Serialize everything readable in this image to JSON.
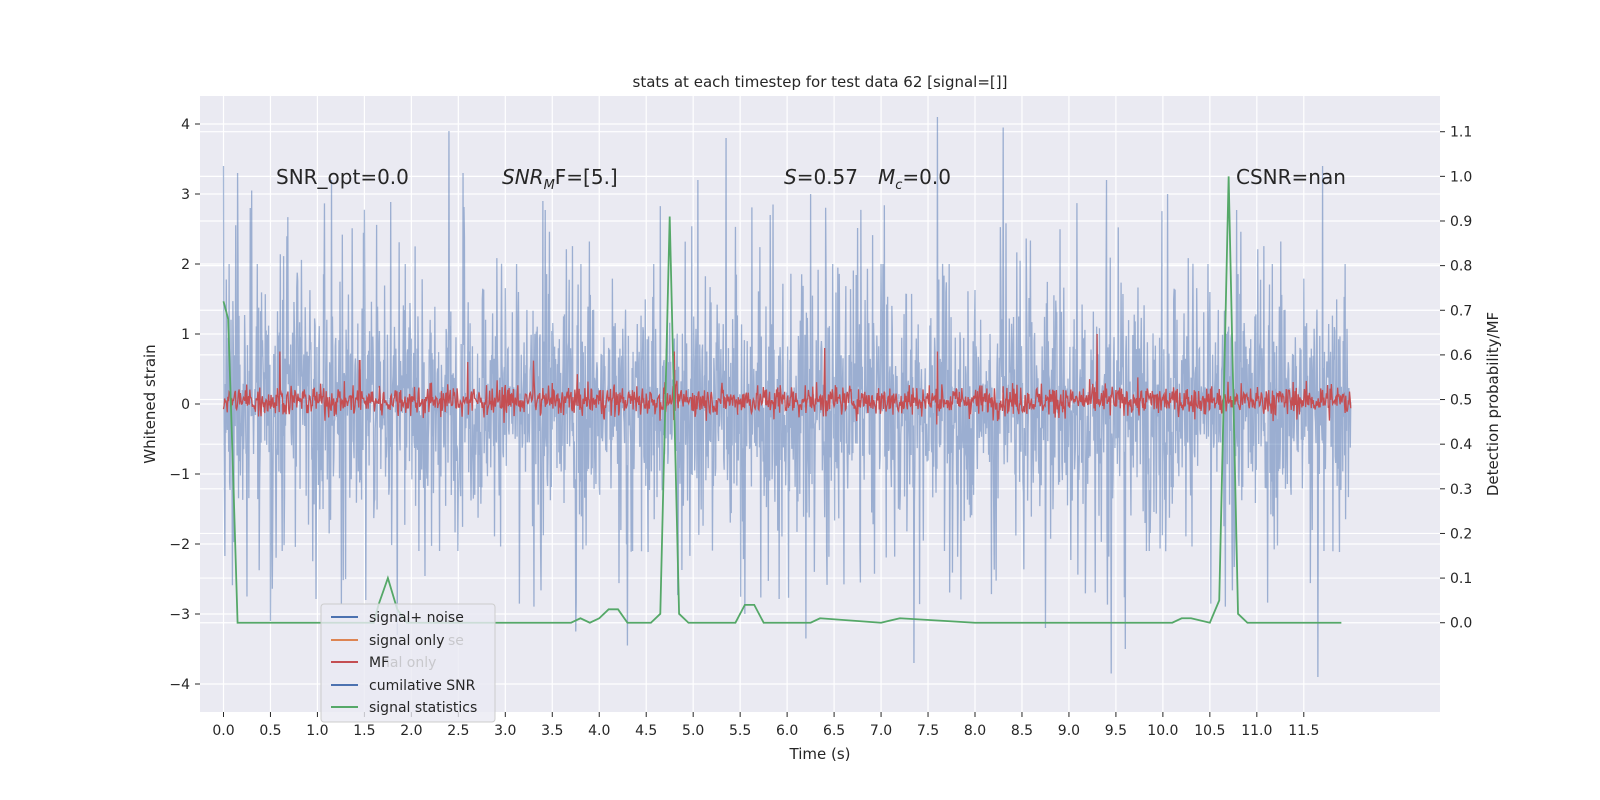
{
  "chart_data": {
    "type": "line",
    "title": "stats at each timestep for test data 62 [signal=[]]",
    "xlabel": "Time (s)",
    "ylabel": "Whitened strain",
    "ylabel_right": "Detection probability/MF",
    "xlim": [
      -0.25,
      12.95
    ],
    "ylim": [
      -4.4,
      4.4
    ],
    "ylim_right": [
      -0.2,
      1.18
    ],
    "x_ticks": [
      0.0,
      0.5,
      1.0,
      1.5,
      2.0,
      2.5,
      3.0,
      3.5,
      4.0,
      4.5,
      5.0,
      5.5,
      6.0,
      6.5,
      7.0,
      7.5,
      8.0,
      8.5,
      9.0,
      9.5,
      10.0,
      10.5,
      11.0,
      11.5
    ],
    "x_tick_labels": [
      "0.0",
      "0.5",
      "1.0",
      "1.5",
      "2.0",
      "2.5",
      "3.0",
      "3.5",
      "4.0",
      "4.5",
      "5.0",
      "5.5",
      "6.0",
      "6.5",
      "7.0",
      "7.5",
      "8.0",
      "8.5",
      "9.0",
      "9.5",
      "10.0",
      "10.5",
      "11.0",
      "11.5"
    ],
    "y_ticks": [
      -4,
      -3,
      -2,
      -1,
      0,
      1,
      2,
      3,
      4
    ],
    "y_tick_labels": [
      "−4",
      "−3",
      "−2",
      "−1",
      "0",
      "1",
      "2",
      "3",
      "4"
    ],
    "y_ticks_right": [
      0.0,
      0.1,
      0.2,
      0.3,
      0.4,
      0.5,
      0.6,
      0.7,
      0.8,
      0.9,
      1.0,
      1.1
    ],
    "y_tick_labels_right": [
      "0.0",
      "0.1",
      "0.2",
      "0.3",
      "0.4",
      "0.5",
      "0.6",
      "0.7",
      "0.8",
      "0.9",
      "1.0",
      "1.1"
    ],
    "grid": true,
    "background": "#eaeaf2",
    "legend_position": "lower-left",
    "legend": [
      {
        "label": "signal+ noise",
        "color": "#4c72b0"
      },
      {
        "label": "signal only",
        "color": "#dd8452"
      },
      {
        "label": "MF",
        "color": "#c44e52"
      },
      {
        "label": "cumilative SNR",
        "color": "#4c72b0"
      },
      {
        "label": "signal statistics",
        "color": "#55a868"
      }
    ],
    "legend_ghost_text": [
      "se",
      "nal only"
    ],
    "annotations": {
      "snr_opt": "SNR_opt=0.0",
      "snr_mf_main": "SNR",
      "snr_mf_sub": "M",
      "snr_mf_rest": "F=[5.]",
      "s_main": "S",
      "s_rest": "=0.57",
      "mc_main": "M",
      "mc_sub": "c",
      "mc_rest": "=0.0",
      "csnr": "CSNR=nan"
    },
    "series": [
      {
        "name": "signal+ noise",
        "color": "#4c72b0",
        "axis": "left",
        "x_range": [
          0.0,
          12.0
        ],
        "typical_range": [
          -2.0,
          2.0
        ],
        "peaks": [
          {
            "x": 0.0,
            "y": 3.4
          },
          {
            "x": 0.15,
            "y": 3.3
          },
          {
            "x": 0.3,
            "y": 3.05
          },
          {
            "x": 1.15,
            "y": 3.2
          },
          {
            "x": 2.4,
            "y": 3.9
          },
          {
            "x": 2.55,
            "y": 3.3
          },
          {
            "x": 5.35,
            "y": 3.8
          },
          {
            "x": 5.05,
            "y": 3.2
          },
          {
            "x": 7.6,
            "y": 4.1
          },
          {
            "x": 8.3,
            "y": 3.95
          },
          {
            "x": 9.4,
            "y": 3.2
          },
          {
            "x": 11.7,
            "y": 3.4
          },
          {
            "x": 3.4,
            "y": 2.9
          },
          {
            "x": 6.25,
            "y": 3.0
          },
          {
            "x": 10.05,
            "y": 3.0
          }
        ],
        "troughs": [
          {
            "x": 0.25,
            "y": -2.75
          },
          {
            "x": 0.5,
            "y": -3.1
          },
          {
            "x": 1.85,
            "y": -3.3
          },
          {
            "x": 3.75,
            "y": -3.25
          },
          {
            "x": 4.3,
            "y": -3.45
          },
          {
            "x": 5.55,
            "y": -3.0
          },
          {
            "x": 6.2,
            "y": -3.35
          },
          {
            "x": 7.35,
            "y": -3.7
          },
          {
            "x": 9.45,
            "y": -3.85
          },
          {
            "x": 9.6,
            "y": -3.5
          },
          {
            "x": 11.65,
            "y": -3.9
          },
          {
            "x": 8.75,
            "y": -3.2
          }
        ]
      },
      {
        "name": "MF",
        "color": "#c44e52",
        "axis": "left",
        "x_range": [
          0.0,
          12.0
        ],
        "typical_range": [
          -0.32,
          0.45
        ],
        "peaks": [
          {
            "x": 0.6,
            "y": 0.75
          },
          {
            "x": 4.8,
            "y": 0.75
          },
          {
            "x": 6.4,
            "y": 0.8
          },
          {
            "x": 7.6,
            "y": 0.75
          },
          {
            "x": 9.3,
            "y": 1.0
          },
          {
            "x": 1.45,
            "y": 0.62
          },
          {
            "x": 2.6,
            "y": 0.6
          },
          {
            "x": 3.3,
            "y": 0.62
          }
        ]
      },
      {
        "name": "signal statistics",
        "color": "#55a868",
        "axis": "right",
        "x": [
          0.0,
          0.05,
          0.1,
          0.15,
          0.25,
          1.0,
          1.6,
          1.65,
          1.75,
          1.85,
          1.95,
          2.5,
          3.0,
          3.7,
          3.8,
          3.9,
          4.0,
          4.1,
          4.2,
          4.3,
          4.4,
          4.55,
          4.65,
          4.75,
          4.85,
          4.95,
          5.3,
          5.45,
          5.55,
          5.65,
          5.75,
          6.0,
          6.25,
          6.35,
          7.0,
          7.2,
          8.0,
          9.0,
          10.0,
          10.1,
          10.2,
          10.3,
          10.5,
          10.6,
          10.7,
          10.8,
          10.9,
          11.0,
          11.9
        ],
        "y": [
          0.72,
          0.68,
          0.35,
          0.0,
          0.0,
          0.0,
          0.0,
          0.04,
          0.1,
          0.03,
          0.0,
          0.0,
          0.0,
          0.0,
          0.01,
          0.0,
          0.01,
          0.03,
          0.03,
          0.0,
          0.0,
          0.0,
          0.02,
          0.91,
          0.02,
          0.0,
          0.0,
          0.0,
          0.04,
          0.04,
          0.0,
          0.0,
          0.0,
          0.01,
          0.0,
          0.01,
          0.0,
          0.0,
          0.0,
          0.0,
          0.01,
          0.01,
          0.0,
          0.05,
          1.0,
          0.02,
          0.0,
          0.0,
          0.0
        ]
      }
    ]
  }
}
